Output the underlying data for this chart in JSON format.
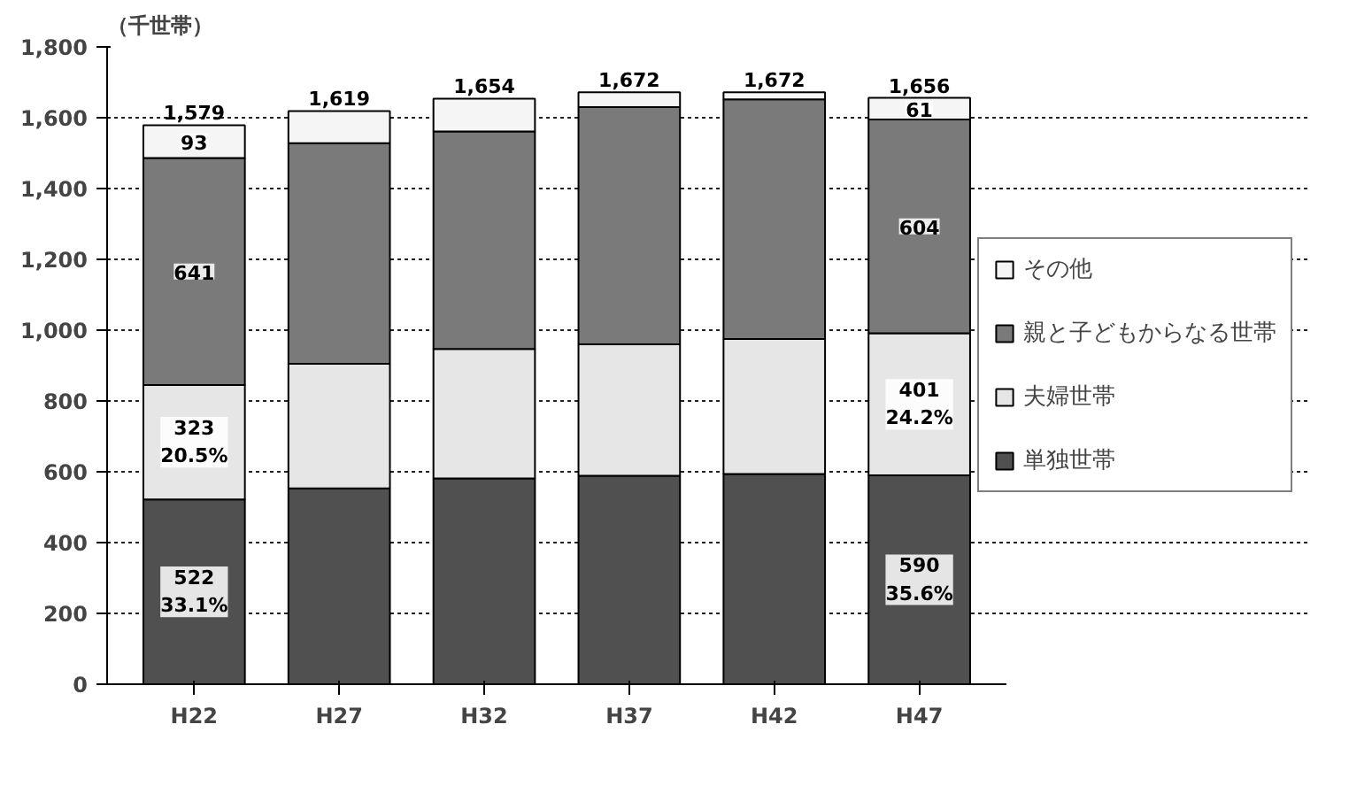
{
  "chart_data": {
    "type": "bar",
    "stacked": true,
    "ylabel": "（千世帯）",
    "categories": [
      "H22",
      "H27",
      "H32",
      "H37",
      "H42",
      "H47"
    ],
    "series": [
      {
        "name": "単独世帯",
        "color": "#505050",
        "values": [
          522,
          553,
          581,
          589,
          594,
          590
        ],
        "value_labels": [
          "522\n33.1%",
          null,
          null,
          null,
          null,
          "590\n35.6%"
        ]
      },
      {
        "name": "夫婦世帯",
        "color": "#e6e6e6",
        "values": [
          323,
          352,
          366,
          371,
          381,
          401
        ],
        "value_labels": [
          "323\n20.5%",
          null,
          null,
          null,
          null,
          "401\n24.2%"
        ]
      },
      {
        "name": "親と子どもからなる世帯",
        "color": "#7a7a7a",
        "values": [
          641,
          623,
          614,
          670,
          677,
          604
        ],
        "value_labels": [
          "641",
          null,
          null,
          null,
          null,
          "604"
        ]
      },
      {
        "name": "その他",
        "color": "#f5f5f5",
        "values": [
          93,
          91,
          93,
          42,
          20,
          61
        ],
        "value_labels": [
          "93",
          null,
          null,
          null,
          null,
          "61"
        ]
      }
    ],
    "totals": [
      "1,579",
      "1,619",
      "1,654",
      "1,672",
      "1,672",
      "1,656"
    ],
    "ylim": [
      0,
      1800
    ],
    "yticks": [
      0,
      {
        "value": 200,
        "label": "200"
      },
      {
        "value": 400,
        "label": "400"
      },
      {
        "value": 600,
        "label": "600"
      },
      {
        "value": 800,
        "label": "800"
      },
      {
        "value": 1000,
        "label": "1,000"
      },
      {
        "value": 1200,
        "label": "1,200"
      },
      {
        "value": 1400,
        "label": "1,400"
      },
      {
        "value": 1600,
        "label": "1,600"
      },
      {
        "value": 1800,
        "label": "1,800"
      }
    ],
    "grid": "y",
    "legend": "right"
  }
}
